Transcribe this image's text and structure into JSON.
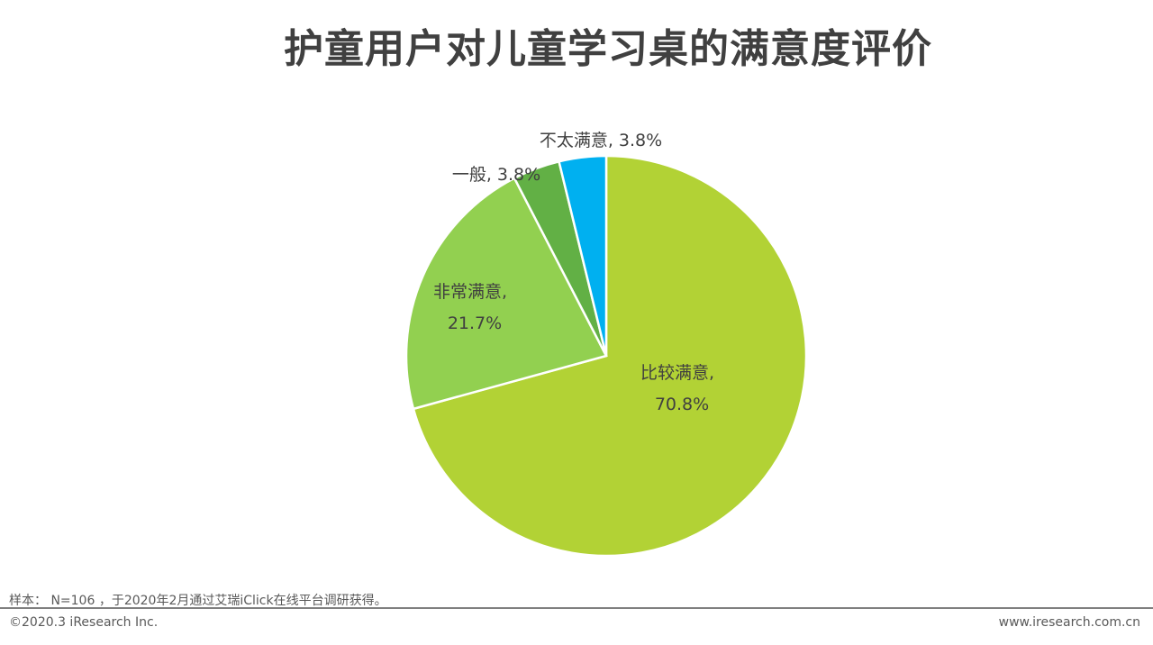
{
  "title": "护童用户对儿童学习桌的满意度评价",
  "chart_data": {
    "type": "pie",
    "title": "护童用户对儿童学习桌的满意度评价",
    "start_angle": "12 o'clock, clockwise",
    "slices": [
      {
        "label": "比较满意",
        "value": 70.8,
        "display": "70.8%",
        "color": "#b2d235"
      },
      {
        "label": "非常满意",
        "value": 21.7,
        "display": "21.7%",
        "color": "#92d050"
      },
      {
        "label": "一般",
        "value": 3.8,
        "display": "3.8%",
        "color": "#62b045"
      },
      {
        "label": "不太满意",
        "value": 3.8,
        "display": "3.8%",
        "color": "#00b0f0"
      }
    ]
  },
  "footer": {
    "note": "样本： N=106 ，于2020年2月通过艾瑞iClick在线平台调研获得。",
    "copyright": "©2020.3 iResearch Inc.",
    "website": "www.iresearch.com.cn"
  }
}
